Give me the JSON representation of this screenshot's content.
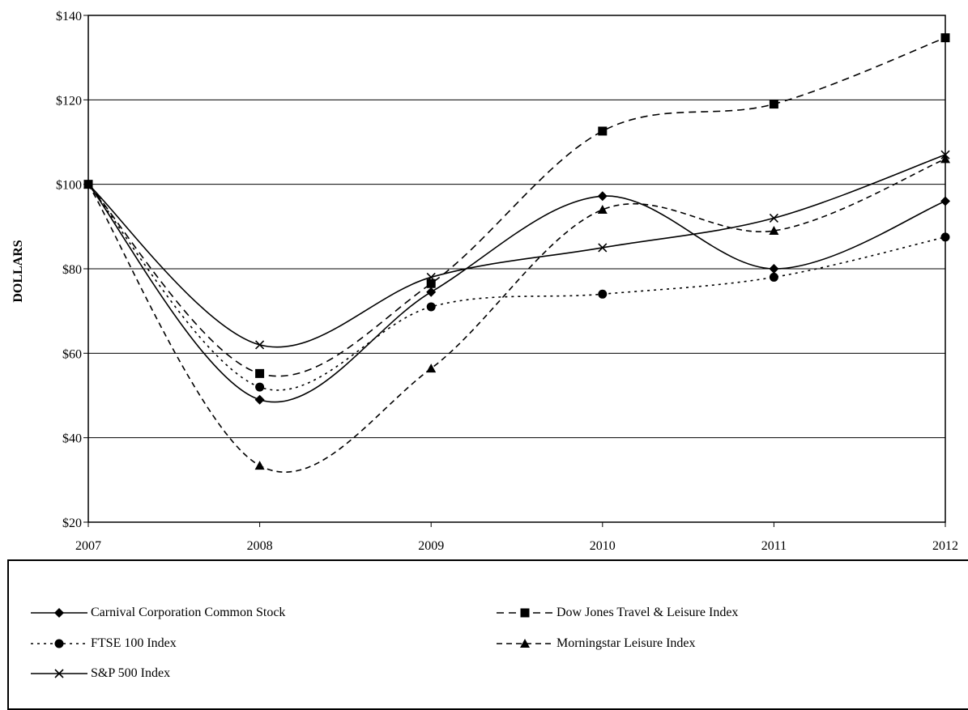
{
  "chart_data": {
    "type": "line",
    "ylabel": "DOLLARS",
    "x": [
      "2007",
      "2008",
      "2009",
      "2010",
      "2011",
      "2012"
    ],
    "ylim": [
      20,
      140
    ],
    "yticks": [
      "$20",
      "$40",
      "$60",
      "$80",
      "$100",
      "$120",
      "$140"
    ],
    "grid": "horizontal",
    "legend_position": "bottom",
    "series": [
      {
        "name": "Carnival Corporation Common Stock",
        "marker": "diamond",
        "dash": "solid",
        "values": [
          100,
          49,
          74.5,
          97.2,
          80,
          96
        ]
      },
      {
        "name": "Dow Jones Travel & Leisure Index",
        "marker": "square",
        "dash": "long-dash",
        "values": [
          100,
          55.2,
          76.5,
          112.6,
          119,
          134.7
        ]
      },
      {
        "name": "FTSE 100 Index",
        "marker": "circle",
        "dash": "dotted",
        "values": [
          100,
          52,
          71,
          74,
          78,
          87.5
        ]
      },
      {
        "name": "Morningstar Leisure Index",
        "marker": "triangle",
        "dash": "dashed",
        "values": [
          100,
          33.4,
          56.4,
          94,
          89,
          106
        ]
      },
      {
        "name": "S&P 500 Index",
        "marker": "x",
        "dash": "solid",
        "values": [
          100,
          62,
          78,
          85,
          92,
          107
        ]
      }
    ]
  }
}
